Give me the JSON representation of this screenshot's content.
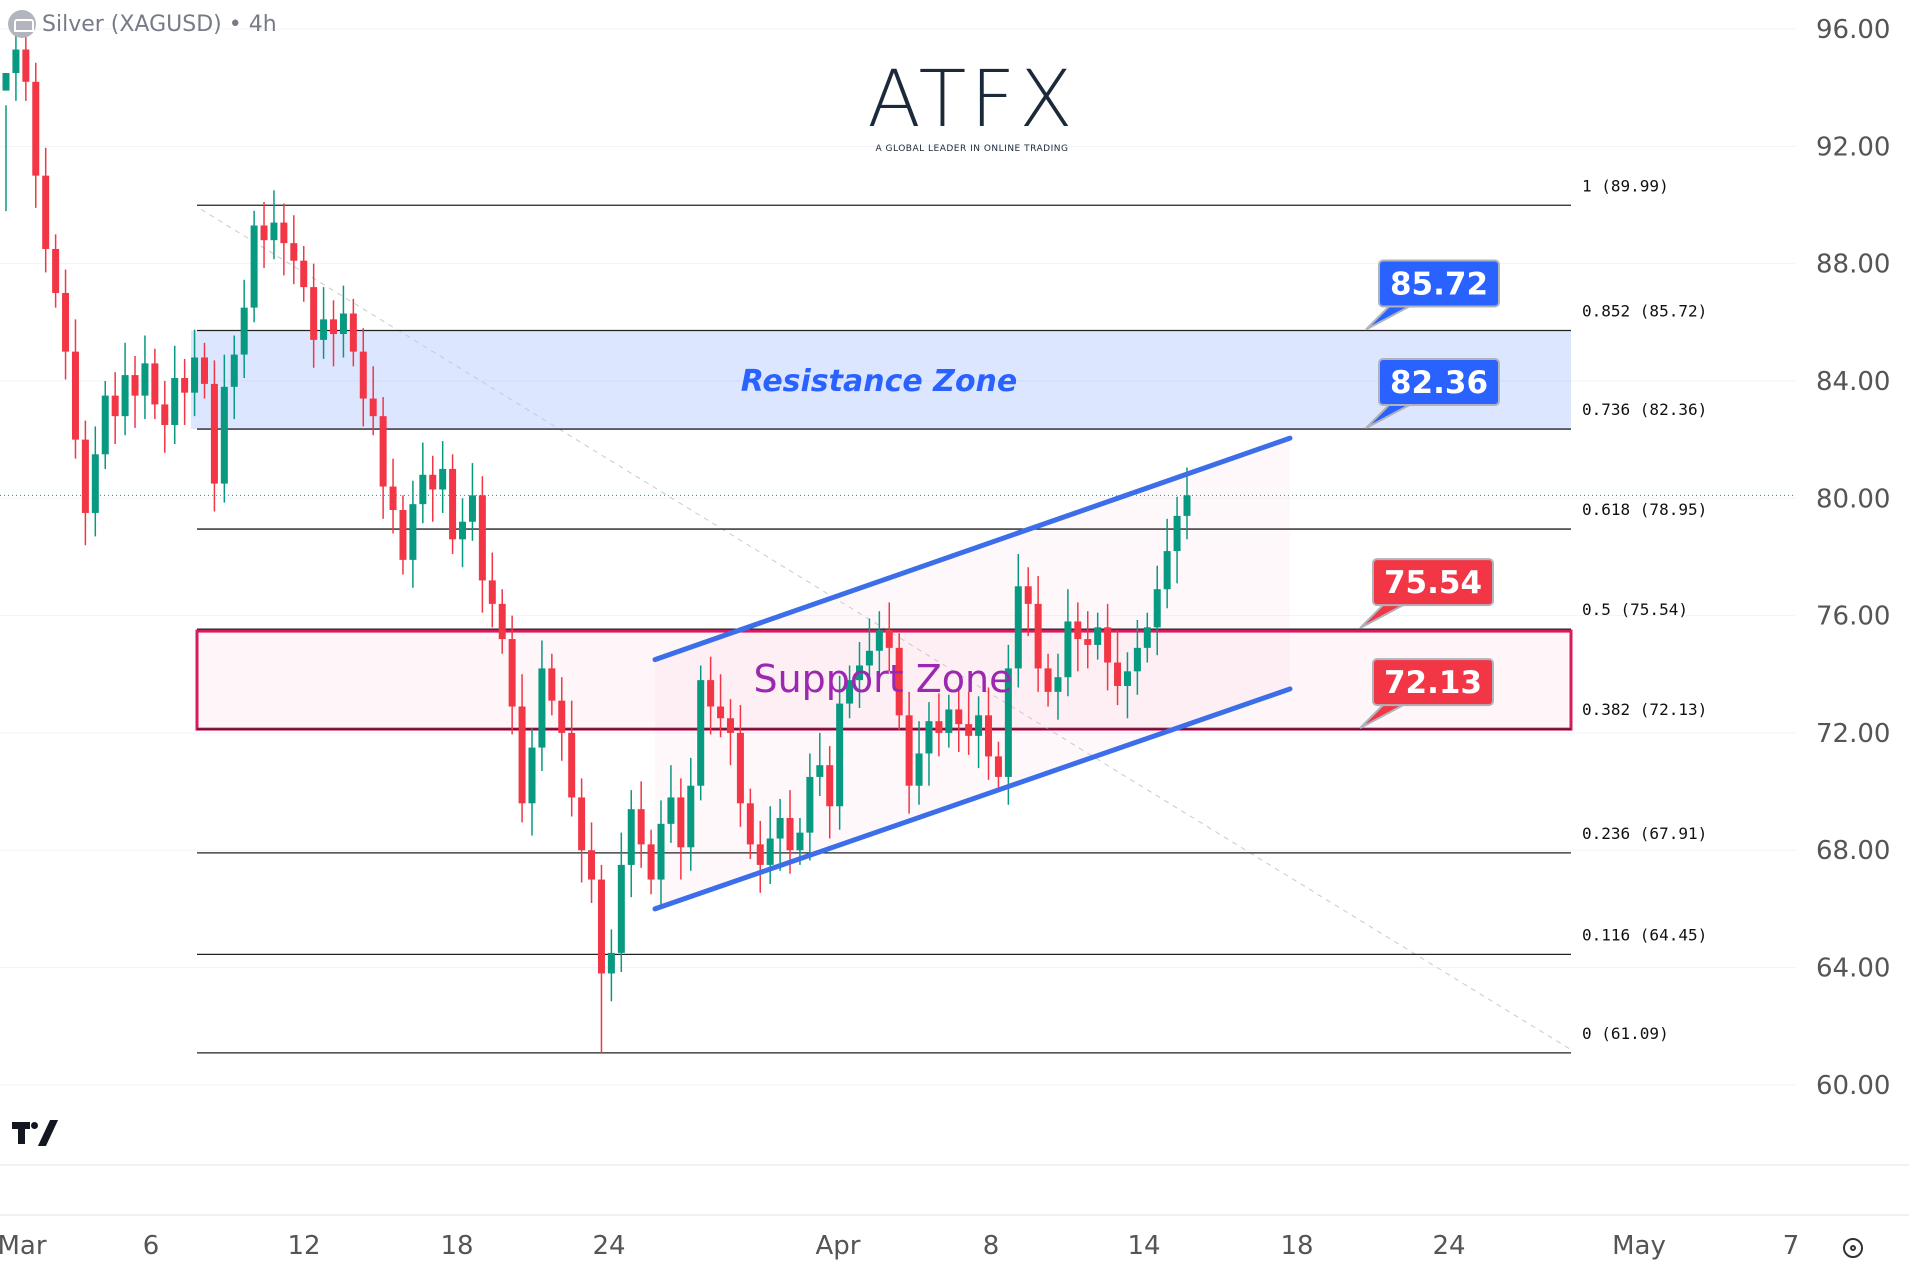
{
  "header": {
    "symbol_title": "Silver (XAGUSD) • 4h",
    "icon": "silver-bars-icon"
  },
  "logo": {
    "brand": "ATFX",
    "tagline": "A GLOBAL LEADER IN ONLINE TRADING",
    "accent": "#f26b21"
  },
  "footer": {
    "tv_logo": "TradingView",
    "settings_icon": "settings-icon"
  },
  "colors": {
    "up": "#089981",
    "down": "#f23645",
    "resistance": "#2962ff",
    "support": "#e91e63",
    "support_text": "#9c27b0",
    "channel": "#3b6ee8"
  },
  "chart_data": {
    "type": "candlestick",
    "ylim": [
      60,
      96
    ],
    "y_ticks": [
      "96.00",
      "92.00",
      "88.00",
      "84.00",
      "80.00",
      "76.00",
      "72.00",
      "68.00",
      "64.00",
      "60.00"
    ],
    "x_ticks": [
      "Mar",
      "6",
      "12",
      "18",
      "24",
      "Apr",
      "8",
      "14",
      "18",
      "24",
      "May",
      "7"
    ],
    "grid": true,
    "current_price": 80.1,
    "closes": [
      94.5,
      95.3,
      94.2,
      91,
      88.5,
      87,
      85,
      82,
      79.5,
      81.5,
      83.5,
      82.8,
      84.2,
      83.5,
      84.6,
      83.2,
      82.5,
      84.1,
      83.6,
      84.8,
      83.9,
      80.5,
      83.8,
      84.9,
      86.5,
      89.3,
      88.8,
      89.4,
      88.7,
      88.1,
      87.2,
      85.4,
      86.1,
      85.6,
      86.3,
      85.0,
      83.4,
      82.8,
      80.4,
      79.6,
      77.9,
      79.8,
      80.8,
      80.3,
      81.0,
      78.6,
      79.2,
      80.1,
      77.2,
      76.4,
      75.2,
      72.9,
      69.6,
      71.5,
      74.2,
      73.1,
      72.0,
      69.8,
      68.0,
      67.0,
      63.8,
      64.5,
      67.5,
      69.4,
      68.2,
      67.0,
      68.9,
      69.8,
      68.1,
      70.2,
      73.8,
      72.9,
      72.5,
      72.0,
      69.6,
      68.2,
      67.5,
      68.4,
      69.1,
      68.0,
      68.6,
      70.5,
      70.9,
      69.5,
      73.0,
      73.8,
      74.3,
      74.8,
      75.5,
      74.9,
      72.6,
      70.2,
      71.3,
      72.4,
      72.0,
      72.8,
      72.3,
      71.9,
      72.6,
      71.2,
      70.5,
      74.2,
      77.0,
      76.4,
      74.2,
      73.4,
      73.9,
      75.8,
      75.2,
      75.0,
      75.6,
      74.4,
      73.6,
      74.1,
      74.9,
      75.6,
      76.9,
      78.2,
      79.4,
      80.1
    ],
    "fib_levels": [
      {
        "ratio": "1",
        "price": 89.99,
        "label": "1 (89.99)"
      },
      {
        "ratio": "0.852",
        "price": 85.72,
        "label": "0.852 (85.72)"
      },
      {
        "ratio": "0.736",
        "price": 82.36,
        "label": "0.736 (82.36)"
      },
      {
        "ratio": "0.618",
        "price": 78.95,
        "label": "0.618 (78.95)"
      },
      {
        "ratio": "0.5",
        "price": 75.54,
        "label": "0.5 (75.54)"
      },
      {
        "ratio": "0.382",
        "price": 72.13,
        "label": "0.382 (72.13)"
      },
      {
        "ratio": "0.236",
        "price": 67.91,
        "label": "0.236 (67.91)"
      },
      {
        "ratio": "0.116",
        "price": 64.45,
        "label": "0.116 (64.45)"
      },
      {
        "ratio": "0",
        "price": 61.09,
        "label": "0 (61.09)"
      }
    ],
    "zones": [
      {
        "name": "Resistance Zone",
        "top": 85.72,
        "bottom": 82.36
      },
      {
        "name": "Support Zone",
        "top": 75.54,
        "bottom": 72.13
      }
    ],
    "callouts": [
      {
        "text": "85.72",
        "price": 85.72,
        "kind": "resistance"
      },
      {
        "text": "82.36",
        "price": 82.36,
        "kind": "resistance"
      },
      {
        "text": "75.54",
        "price": 75.54,
        "kind": "support"
      },
      {
        "text": "72.13",
        "price": 72.13,
        "kind": "support"
      }
    ],
    "channel": {
      "upper": [
        74.5,
        82.05
      ],
      "lower": [
        66.0,
        73.5
      ]
    },
    "trendline": [
      89.85,
      61.2
    ]
  }
}
